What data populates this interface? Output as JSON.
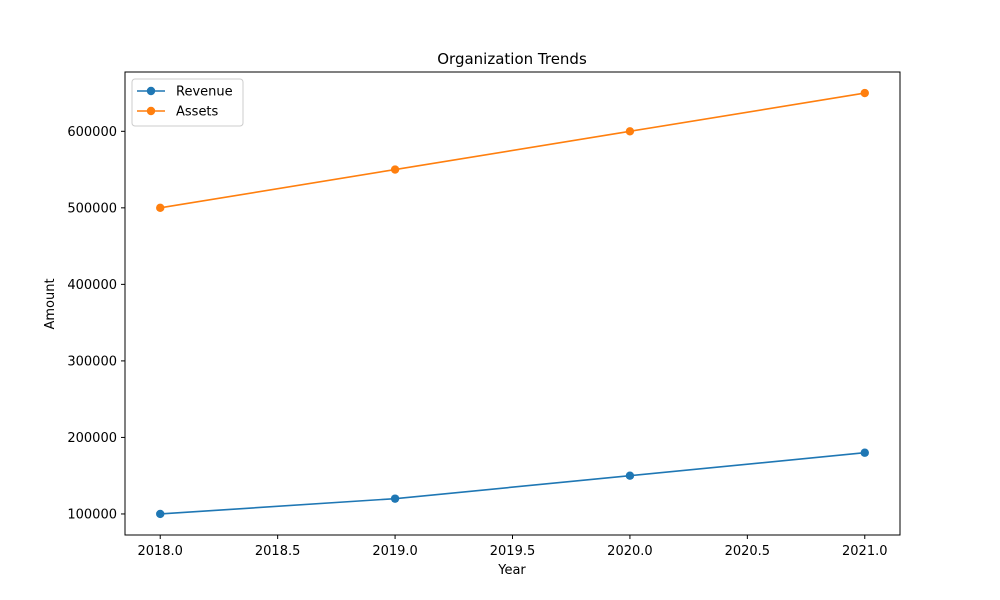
{
  "chart_data": {
    "type": "line",
    "title": "Organization Trends",
    "xlabel": "Year",
    "ylabel": "Amount",
    "xlim": [
      2017.85,
      2021.15
    ],
    "ylim": [
      72500,
      677500
    ],
    "xticks": [
      2018.0,
      2018.5,
      2019.0,
      2019.5,
      2020.0,
      2020.5,
      2021.0
    ],
    "xtick_labels": [
      "2018.0",
      "2018.5",
      "2019.0",
      "2019.5",
      "2020.0",
      "2020.5",
      "2021.0"
    ],
    "yticks": [
      100000,
      200000,
      300000,
      400000,
      500000,
      600000
    ],
    "ytick_labels": [
      "100000",
      "200000",
      "300000",
      "400000",
      "500000",
      "600000"
    ],
    "grid": false,
    "legend": "top-left",
    "x": [
      2018,
      2019,
      2020,
      2021
    ],
    "series": [
      {
        "name": "Revenue",
        "values": [
          100000,
          120000,
          150000,
          180000
        ],
        "color": "#1f77b4",
        "marker": "circle"
      },
      {
        "name": "Assets",
        "values": [
          500000,
          550000,
          600000,
          650000
        ],
        "color": "#ff7f0e",
        "marker": "circle"
      }
    ]
  }
}
